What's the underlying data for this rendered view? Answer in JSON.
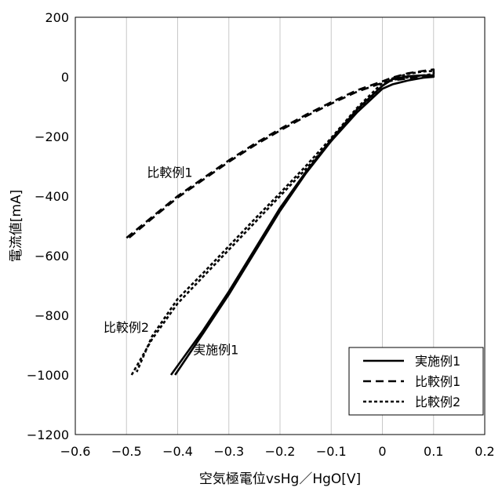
{
  "chart_data": {
    "type": "line",
    "title": "",
    "xlabel": "空気極電位vsHg／HgO[V]",
    "ylabel": "電流値[mA]",
    "xlim": [
      -0.6,
      0.2
    ],
    "ylim": [
      -1200,
      200
    ],
    "xticks": [
      -0.6,
      -0.5,
      -0.4,
      -0.3,
      -0.2,
      -0.1,
      0,
      0.1,
      0.2
    ],
    "yticks": [
      200,
      0,
      -200,
      -400,
      -600,
      -800,
      -1000,
      -1200
    ],
    "xtick_labels": [
      "−0.6",
      "−0.5",
      "−0.4",
      "−0.3",
      "−0.2",
      "−0.1",
      "0",
      "0.1",
      "0.2"
    ],
    "ytick_labels": [
      "200",
      "0",
      "−200",
      "−400",
      "−600",
      "−800",
      "−1000",
      "−1200"
    ],
    "grid": "vertical",
    "legend_position": "bottom-right",
    "series": [
      {
        "name": "実施例1",
        "style": "solid",
        "x": [
          -0.413,
          -0.35,
          -0.3,
          -0.25,
          -0.2,
          -0.15,
          -0.1,
          -0.05,
          0.0,
          0.02,
          0.05,
          0.08,
          0.1,
          0.1,
          0.08,
          0.05,
          0.02,
          0.0,
          -0.05,
          -0.1,
          -0.15,
          -0.2,
          -0.25,
          -0.3,
          -0.35,
          -0.405
        ],
        "y": [
          -1000,
          -850,
          -720,
          -580,
          -440,
          -320,
          -210,
          -110,
          -30,
          -8,
          2,
          5,
          5,
          0,
          -3,
          -12,
          -25,
          -40,
          -120,
          -215,
          -325,
          -450,
          -590,
          -730,
          -860,
          -1000
        ]
      },
      {
        "name": "比較例1",
        "style": "dashed",
        "x": [
          -0.5,
          -0.45,
          -0.4,
          -0.35,
          -0.3,
          -0.25,
          -0.2,
          -0.15,
          -0.1,
          -0.05,
          0.0,
          0.02,
          0.05,
          0.08,
          0.1,
          0.1,
          0.08,
          0.05,
          0.02,
          0.0,
          -0.05,
          -0.1,
          -0.15,
          -0.2,
          -0.25,
          -0.3,
          -0.35,
          -0.4,
          -0.45,
          -0.495
        ],
        "y": [
          -540,
          -470,
          -400,
          -340,
          -280,
          -225,
          -175,
          -128,
          -85,
          -45,
          -15,
          -2,
          12,
          20,
          25,
          5,
          2,
          -5,
          -12,
          -20,
          -50,
          -90,
          -133,
          -180,
          -230,
          -285,
          -345,
          -405,
          -475,
          -540
        ]
      },
      {
        "name": "比較例2",
        "style": "dotted",
        "x": [
          -0.49,
          -0.45,
          -0.4,
          -0.35,
          -0.3,
          -0.25,
          -0.2,
          -0.15,
          -0.1,
          -0.05,
          0.0,
          0.02,
          0.05,
          0.08,
          0.1,
          0.1,
          0.08,
          0.05,
          0.02,
          0.0,
          -0.05,
          -0.1,
          -0.15,
          -0.2,
          -0.25,
          -0.3,
          -0.35,
          -0.4,
          -0.45,
          -0.48
        ],
        "y": [
          -1000,
          -880,
          -760,
          -670,
          -580,
          -490,
          -400,
          -310,
          -215,
          -115,
          -30,
          -5,
          10,
          18,
          20,
          10,
          5,
          -2,
          -10,
          -20,
          -105,
          -205,
          -300,
          -390,
          -478,
          -568,
          -658,
          -745,
          -870,
          -990
        ]
      }
    ],
    "annotations": [
      {
        "text": "比較例1",
        "x": -0.46,
        "y": -320
      },
      {
        "text": "比較例2",
        "x": -0.545,
        "y": -840
      },
      {
        "text": "実施例1",
        "x": -0.37,
        "y": -915
      }
    ]
  }
}
